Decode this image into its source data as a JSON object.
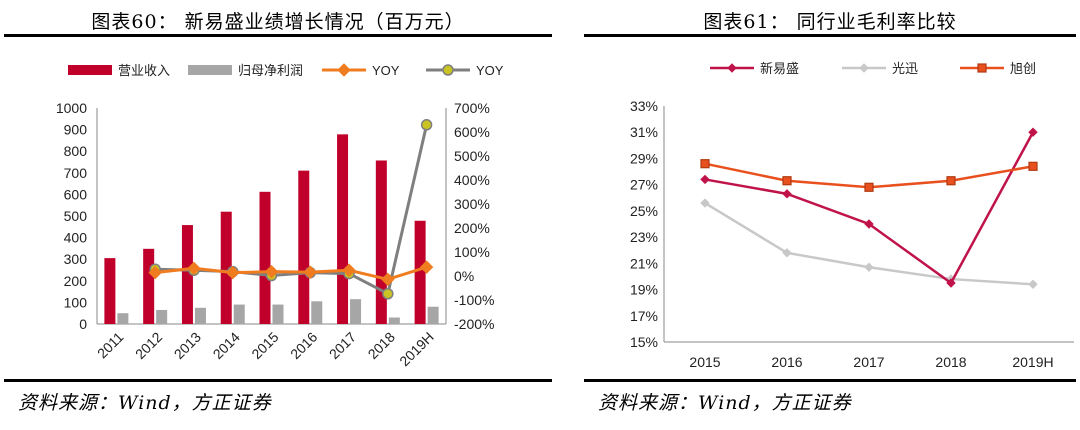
{
  "figures": [
    {
      "title": "图表60：  新易盛业绩增长情况（百万元）",
      "source": "资料来源：Wind，方正证券"
    },
    {
      "title": "图表61：  同行业毛利率比较",
      "source": "资料来源：Wind，方正证券"
    }
  ],
  "chart_data": [
    {
      "type": "bar",
      "title": "",
      "categories": [
        "2011",
        "2012",
        "2013",
        "2014",
        "2015",
        "2016",
        "2017",
        "2018",
        "2019H"
      ],
      "ylim": [
        0,
        1000
      ],
      "y_ticks": [
        "1000",
        "900",
        "800",
        "700",
        "600",
        "500",
        "400",
        "300",
        "200",
        "100",
        "0"
      ],
      "y2lim": [
        -200,
        700
      ],
      "y2_ticks": [
        "700%",
        "600%",
        "500%",
        "400%",
        "300%",
        "200%",
        "100%",
        "0%",
        "-100%",
        "-200%"
      ],
      "legend_position": "top",
      "series": [
        {
          "name": "营业收入",
          "kind": "bar",
          "axis": "left",
          "color": "#c0002a",
          "values": [
            305,
            348,
            458,
            520,
            612,
            710,
            878,
            757,
            478
          ]
        },
        {
          "name": "归母净利润",
          "kind": "bar",
          "axis": "left",
          "color": "#a6a6a6",
          "values": [
            50,
            65,
            75,
            90,
            90,
            105,
            115,
            30,
            80
          ]
        },
        {
          "name": "YOY",
          "kind": "line",
          "axis": "right",
          "color": "#f07c20",
          "marker": "diamond",
          "values": [
            null,
            14,
            32,
            14,
            18,
            16,
            24,
            -14,
            37
          ]
        },
        {
          "name": "YOY",
          "kind": "line",
          "axis": "right",
          "color": "#7f7f7f",
          "marker": "circle",
          "values": [
            null,
            28,
            24,
            18,
            2,
            14,
            10,
            -74,
            630
          ]
        }
      ]
    },
    {
      "type": "line",
      "title": "",
      "categories": [
        "2015",
        "2016",
        "2017",
        "2018",
        "2019H"
      ],
      "ylim": [
        15,
        33
      ],
      "y_ticks": [
        "33%",
        "31%",
        "29%",
        "27%",
        "25%",
        "23%",
        "21%",
        "19%",
        "17%",
        "15%"
      ],
      "legend_position": "top",
      "series": [
        {
          "name": "新易盛",
          "color": "#c0134a",
          "marker": "diamond",
          "values": [
            27.4,
            26.3,
            24.0,
            19.5,
            31.0
          ]
        },
        {
          "name": "光迅",
          "color": "#c8c8c8",
          "marker": "diamond",
          "values": [
            25.6,
            21.8,
            20.7,
            19.8,
            19.4
          ]
        },
        {
          "name": "旭创",
          "color": "#e8501e",
          "marker": "square",
          "values": [
            28.6,
            27.3,
            26.8,
            27.3,
            28.4
          ]
        }
      ]
    }
  ]
}
